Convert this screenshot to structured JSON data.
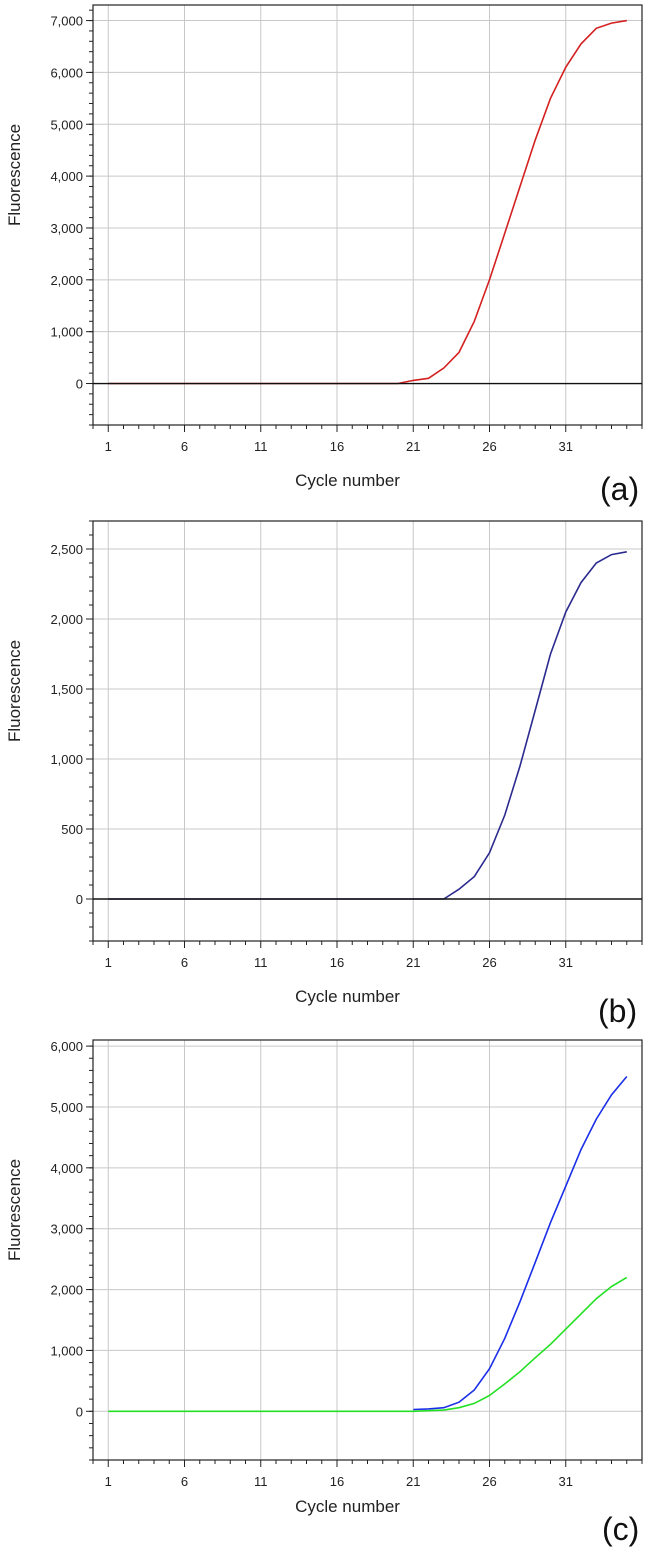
{
  "chart_data": [
    {
      "type": "line",
      "panel_label": "(a)",
      "xlabel": "Cycle number",
      "ylabel": "Fluorescence",
      "xlim": [
        0,
        36
      ],
      "ylim": [
        -800,
        7300
      ],
      "x_ticks": [
        1,
        6,
        11,
        16,
        21,
        26,
        31
      ],
      "y_ticks": [
        0,
        1000,
        2000,
        3000,
        4000,
        5000,
        6000,
        7000
      ],
      "y_tick_labels": [
        "0",
        "1,000",
        "2,000",
        "3,000",
        "4,000",
        "5,000",
        "6,000",
        "7,000"
      ],
      "grid": true,
      "threshold": 0,
      "series": [
        {
          "color": "#d42020",
          "x": [
            1,
            5,
            10,
            15,
            20,
            21,
            22,
            23,
            24,
            25,
            26,
            27,
            28,
            29,
            30,
            31,
            32,
            33,
            34,
            35
          ],
          "y": [
            0,
            0,
            0,
            0,
            0,
            60,
            100,
            300,
            600,
            1200,
            2000,
            2900,
            3800,
            4700,
            5500,
            6100,
            6550,
            6850,
            6950,
            7000
          ]
        }
      ]
    },
    {
      "type": "line",
      "panel_label": "(b)",
      "xlabel": "Cycle number",
      "ylabel": "Fluorescence",
      "xlim": [
        0,
        36
      ],
      "ylim": [
        -300,
        2700
      ],
      "x_ticks": [
        1,
        6,
        11,
        16,
        21,
        26,
        31
      ],
      "y_ticks": [
        0,
        500,
        1000,
        1500,
        2000,
        2500
      ],
      "y_tick_labels": [
        "0",
        "500",
        "1,000",
        "1,500",
        "2,000",
        "2,500"
      ],
      "grid": true,
      "threshold": 0,
      "series": [
        {
          "color": "#2b2b8f",
          "x": [
            1,
            5,
            10,
            15,
            20,
            21,
            23,
            24,
            25,
            26,
            27,
            28,
            29,
            30,
            31,
            32,
            33,
            34,
            35
          ],
          "y": [
            0,
            0,
            0,
            0,
            0,
            0,
            0,
            70,
            160,
            330,
            600,
            950,
            1350,
            1750,
            2050,
            2260,
            2400,
            2460,
            2480
          ]
        }
      ]
    },
    {
      "type": "line",
      "panel_label": "(c)",
      "xlabel": "Cycle number",
      "ylabel": "Fluorescence",
      "xlim": [
        0,
        36
      ],
      "ylim": [
        -800,
        6100
      ],
      "x_ticks": [
        1,
        6,
        11,
        16,
        21,
        26,
        31
      ],
      "y_ticks": [
        0,
        1000,
        2000,
        3000,
        4000,
        5000,
        6000
      ],
      "y_tick_labels": [
        "0",
        "1,000",
        "2,000",
        "3,000",
        "4,000",
        "5,000",
        "6,000"
      ],
      "grid": true,
      "series": [
        {
          "color": "#1a2ee8",
          "x": [
            21,
            22,
            23,
            24,
            25,
            26,
            27,
            28,
            29,
            30,
            31,
            32,
            33,
            34,
            35
          ],
          "y": [
            30,
            40,
            60,
            150,
            350,
            700,
            1200,
            1800,
            2450,
            3100,
            3700,
            4300,
            4800,
            5200,
            5500
          ]
        },
        {
          "color": "#22e022",
          "x": [
            1,
            5,
            10,
            15,
            20,
            21,
            22,
            23,
            24,
            25,
            26,
            27,
            28,
            29,
            30,
            31,
            32,
            33,
            34,
            35
          ],
          "y": [
            0,
            0,
            0,
            0,
            0,
            0,
            10,
            20,
            60,
            130,
            260,
            450,
            650,
            880,
            1100,
            1350,
            1600,
            1850,
            2050,
            2200
          ]
        }
      ]
    }
  ]
}
